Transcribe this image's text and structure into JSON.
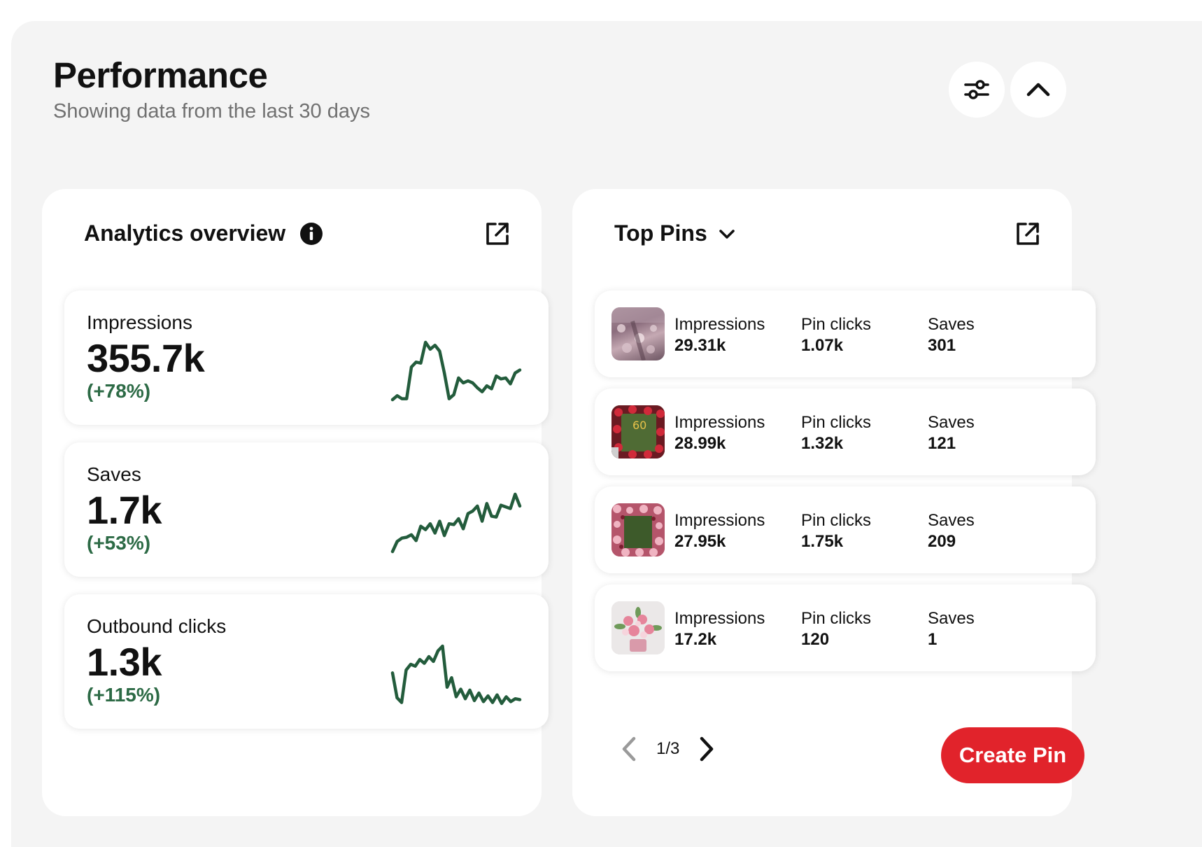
{
  "header": {
    "title": "Performance",
    "subtitle": "Showing data from the last 30 days",
    "filter_icon": "sliders-icon",
    "collapse_icon": "chevron-up-icon"
  },
  "analytics": {
    "title": "Analytics overview",
    "info_icon": "info-icon",
    "external_icon": "external-link-icon",
    "line_color": "#235c3c",
    "change_color": "#2c6a45",
    "metrics": [
      {
        "label": "Impressions",
        "value": "355.7k",
        "change": "(+78%)",
        "trend": [
          3,
          7,
          4,
          4,
          36,
          41,
          40,
          61,
          54,
          58,
          52,
          30,
          4,
          8,
          25,
          20,
          22,
          20,
          15,
          11,
          17,
          14,
          27,
          24,
          25,
          19,
          30,
          33
        ]
      },
      {
        "label": "Saves",
        "value": "1.7k",
        "change": "(+53%)",
        "trend": [
          2,
          14,
          18,
          19,
          22,
          15,
          32,
          28,
          35,
          24,
          38,
          21,
          35,
          34,
          41,
          29,
          47,
          50,
          56,
          38,
          59,
          44,
          43,
          57,
          55,
          53,
          70,
          56
        ]
      },
      {
        "label": "Outbound clicks",
        "value": "1.3k",
        "change": "(+115%)",
        "trend": [
          35,
          9,
          4,
          38,
          44,
          42,
          49,
          45,
          52,
          47,
          58,
          63,
          20,
          30,
          10,
          18,
          8,
          17,
          6,
          14,
          5,
          11,
          4,
          12,
          3,
          10,
          5,
          8,
          7
        ]
      }
    ]
  },
  "top_pins": {
    "title": "Top Pins",
    "dropdown_icon": "chevron-down-icon",
    "external_icon": "external-link-icon",
    "pins": [
      {
        "thumb": "banquet-hall-image",
        "impressions_label": "Impressions",
        "impressions": "29.31k",
        "clicks_label": "Pin clicks",
        "clicks": "1.07k",
        "saves_label": "Saves",
        "saves": "301"
      },
      {
        "thumb": "floral-frame-image",
        "impressions_label": "Impressions",
        "impressions": "28.99k",
        "clicks_label": "Pin clicks",
        "clicks": "1.32k",
        "saves_label": "Saves",
        "saves": "121"
      },
      {
        "thumb": "flower-wall-image",
        "impressions_label": "Impressions",
        "impressions": "27.95k",
        "clicks_label": "Pin clicks",
        "clicks": "1.75k",
        "saves_label": "Saves",
        "saves": "209"
      },
      {
        "thumb": "bouquet-image",
        "impressions_label": "Impressions",
        "impressions": "17.2k",
        "clicks_label": "Pin clicks",
        "clicks": "120",
        "saves_label": "Saves",
        "saves": "1"
      }
    ],
    "pagination": {
      "label": "1/3",
      "prev_icon": "chevron-left-icon",
      "next_icon": "chevron-right-icon"
    },
    "create_button": "Create Pin",
    "create_color": "#e1232b"
  }
}
